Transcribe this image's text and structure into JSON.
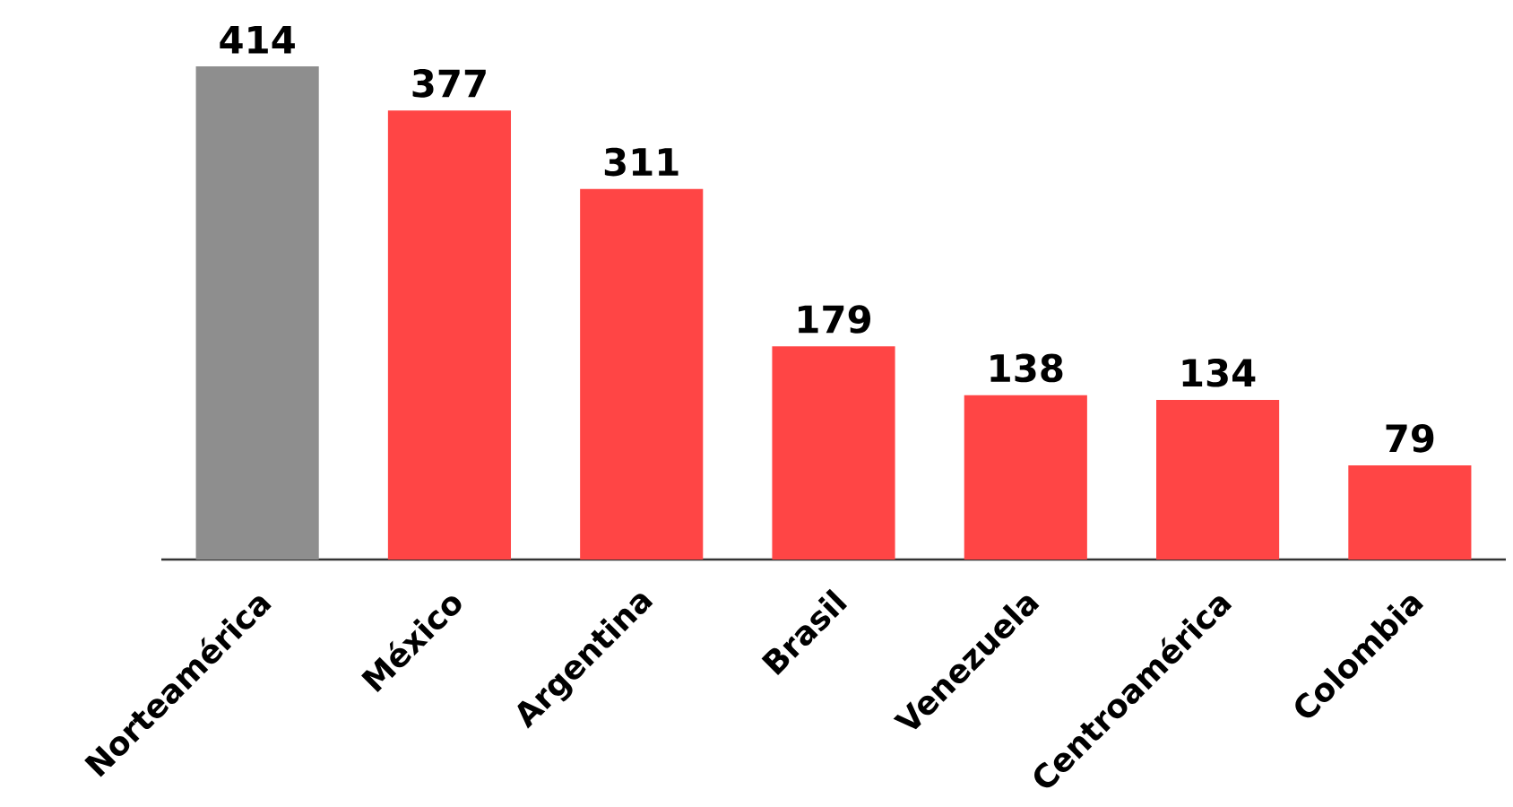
{
  "chart_data": {
    "type": "bar",
    "categories": [
      "Norteamérica",
      "México",
      "Argentina",
      "Brasil",
      "Venezuela",
      "Centroamérica",
      "Colombia"
    ],
    "values": [
      414,
      377,
      311,
      179,
      138,
      134,
      79
    ],
    "colors": [
      "#8e8e8e",
      "#ff4545",
      "#ff4545",
      "#ff4545",
      "#ff4545",
      "#ff4545",
      "#ff4545"
    ],
    "data_labels": true
  }
}
